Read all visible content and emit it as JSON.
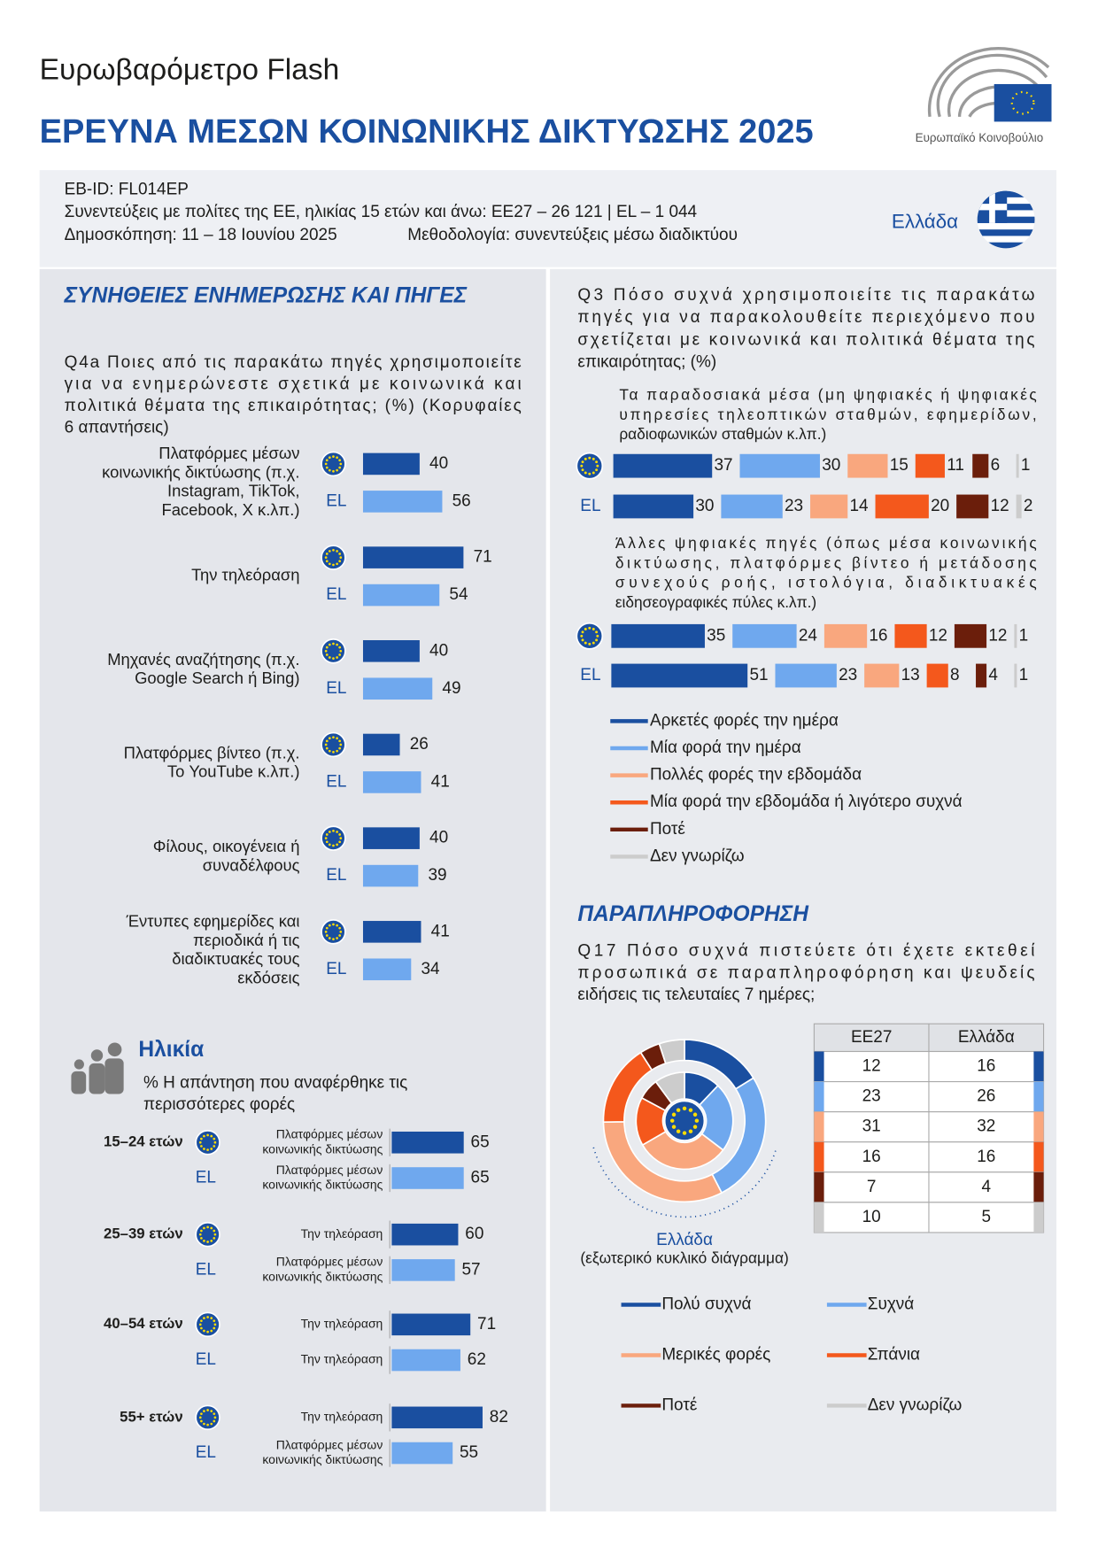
{
  "header": {
    "subtitle": "Ευρωβαρόμετρο Flash",
    "title": "ΕΡΕΥΝΑ ΜΕΣΩΝ ΚΟΙΝΩΝΙΚΗΣ ΔΙΚΤΥΩΣΗΣ 2025",
    "logo_text": "Ευρωπαϊκό Κοινοβούλιο"
  },
  "info": {
    "lines": [
      "EB-ID: FL014EP",
      "Συνεντεύξεις με πολίτες της ΕΕ, ηλικίας 15 ετών και άνω: ΕΕ27 – 26 121 | EL – 1 044",
      "Δημοσκόπηση: 11 – 18 Ιουνίου 2025"
    ],
    "methodology": "Μεθοδολογία: συνεντεύξεις μέσω διαδικτύου",
    "country": "Ελλάδα"
  },
  "el_label": "EL",
  "q4a": {
    "section": "ΣΥΝΗΘΕΙΕΣ ΕΝΗΜΕΡΩΣΗΣ ΚΑΙ ΠΗΓΕΣ",
    "question": [
      "Q4a Ποιες από τις παρακάτω πηγές χρησιμοποιείτε",
      "για να ενημερώνεστε σχετικά με κοινωνικά και",
      "πολιτικά θέματα της επικαιρότητας; (%) (Κορυφαίες",
      "6 απαντήσεις)"
    ],
    "colors": {
      "eu": "#1a4fa0",
      "el": "#6fa8ee"
    },
    "items": [
      {
        "label": [
          "Πλατφόρμες μέσων",
          "κοινωνικής δικτύωσης (π.χ.",
          "Instagram, TikTok,",
          "Facebook, X κ.λπ.)"
        ],
        "eu": 40,
        "el": 56
      },
      {
        "label": [
          "Την τηλεόραση"
        ],
        "eu": 71,
        "el": 54
      },
      {
        "label": [
          "Μηχανές αναζήτησης (π.χ.",
          "Google Search ή Bing)"
        ],
        "eu": 40,
        "el": 49
      },
      {
        "label": [
          "Πλατφόρμες βίντεο (π.χ.",
          "Το YouTube κ.λπ.)"
        ],
        "eu": 26,
        "el": 41
      },
      {
        "label": [
          "Φίλους, οικογένεια ή",
          "συναδέλφους"
        ],
        "eu": 40,
        "el": 39
      },
      {
        "label": [
          "Έντυπες εφημερίδες και",
          "περιοδικά ή τις",
          "διαδικτυακές τους",
          "εκδόσεις"
        ],
        "eu": 41,
        "el": 34
      }
    ]
  },
  "age": {
    "title": "Ηλικία",
    "subtitle": [
      "% Η απάντηση που αναφέρθηκε τις",
      "περισσότερες φορές"
    ],
    "groups": [
      {
        "label": "15–24 ετών",
        "eu": {
          "answer": [
            "Πλατφόρμες μέσων",
            "κοινωνικής δικτύωσης"
          ],
          "value": 65
        },
        "el": {
          "answer": [
            "Πλατφόρμες μέσων",
            "κοινωνικής δικτύωσης"
          ],
          "value": 65
        }
      },
      {
        "label": "25–39 ετών",
        "eu": {
          "answer": [
            "Την τηλεόραση"
          ],
          "value": 60
        },
        "el": {
          "answer": [
            "Πλατφόρμες μέσων",
            "κοινωνικής δικτύωσης"
          ],
          "value": 57
        }
      },
      {
        "label": "40–54 ετών",
        "eu": {
          "answer": [
            "Την τηλεόραση"
          ],
          "value": 71
        },
        "el": {
          "answer": [
            "Την τηλεόραση"
          ],
          "value": 62
        }
      },
      {
        "label": "55+ ετών",
        "eu": {
          "answer": [
            "Την τηλεόραση"
          ],
          "value": 82
        },
        "el": {
          "answer": [
            "Πλατφόρμες μέσων",
            "κοινωνικής δικτύωσης"
          ],
          "value": 55
        }
      }
    ]
  },
  "q3": {
    "question": [
      "Q3 Πόσο συχνά χρησιμοποιείτε τις παρακάτω",
      "πηγές για να παρακολουθείτε περιεχόμενο που",
      "σχετίζεται με κοινωνικά και πολιτικά θέματα της",
      "επικαιρότητας; (%)"
    ],
    "legend": [
      "Αρκετές φορές την ημέρα",
      "Μία φορά την ημέρα",
      "Πολλές φορές την εβδομάδα",
      "Μία φορά την εβδομάδα ή λιγότερο συχνά",
      "Ποτέ",
      "Δεν γνωρίζω"
    ],
    "colors": [
      "#1a4fa0",
      "#6fa8ee",
      "#f9a77e",
      "#f4581c",
      "#6b1e0b",
      "#cccccc"
    ],
    "groups": [
      {
        "label": [
          "Τα παραδοσιακά μέσα (μη ψηφιακές ή ψηφιακές",
          "υπηρεσίες τηλεοπτικών σταθμών, εφημερίδων,",
          "ραδιοφωνικών σταθμών κ.λπ.)"
        ],
        "eu": [
          37,
          30,
          15,
          11,
          6,
          1
        ],
        "el": [
          30,
          23,
          14,
          20,
          12,
          2
        ]
      },
      {
        "label": [
          "Άλλες ψηφιακές πηγές (όπως μέσα κοινωνικής",
          "δικτύωσης, πλατφόρμες βίντεο ή μετάδοσης",
          "συνεχούς ροής, ιστολόγια, διαδικτυακές",
          "ειδησεογραφικές πύλες κ.λπ.)"
        ],
        "eu": [
          35,
          24,
          16,
          12,
          12,
          1
        ],
        "el": [
          51,
          23,
          13,
          8,
          4,
          1
        ]
      }
    ]
  },
  "q17": {
    "section": "ΠΑΡΑΠΛΗΡΟΦΟΡΗΣΗ",
    "question": [
      "Q17 Πόσο συχνά πιστεύετε ότι έχετε εκτεθεί",
      "προσωπικά σε παραπληροφόρηση και ψευδείς",
      "ειδήσεις τις τελευταίες 7 ημέρες;"
    ],
    "columns": [
      "ΕΕ27",
      "Ελλάδα"
    ],
    "ee27": [
      12,
      23,
      31,
      16,
      7,
      10
    ],
    "el": [
      16,
      26,
      32,
      16,
      4,
      5
    ],
    "caption": [
      "Ελλάδα",
      "(εξωτερικό κυκλικό διάγραμμα)"
    ],
    "legend": [
      "Πολύ συχνά",
      "Συχνά",
      "Μερικές φορές",
      "Σπάνια",
      "Ποτέ",
      "Δεν γνωρίζω"
    ],
    "colors": [
      "#1a4fa0",
      "#6fa8ee",
      "#f9a77e",
      "#f4581c",
      "#6b1e0b",
      "#cccccc"
    ]
  }
}
